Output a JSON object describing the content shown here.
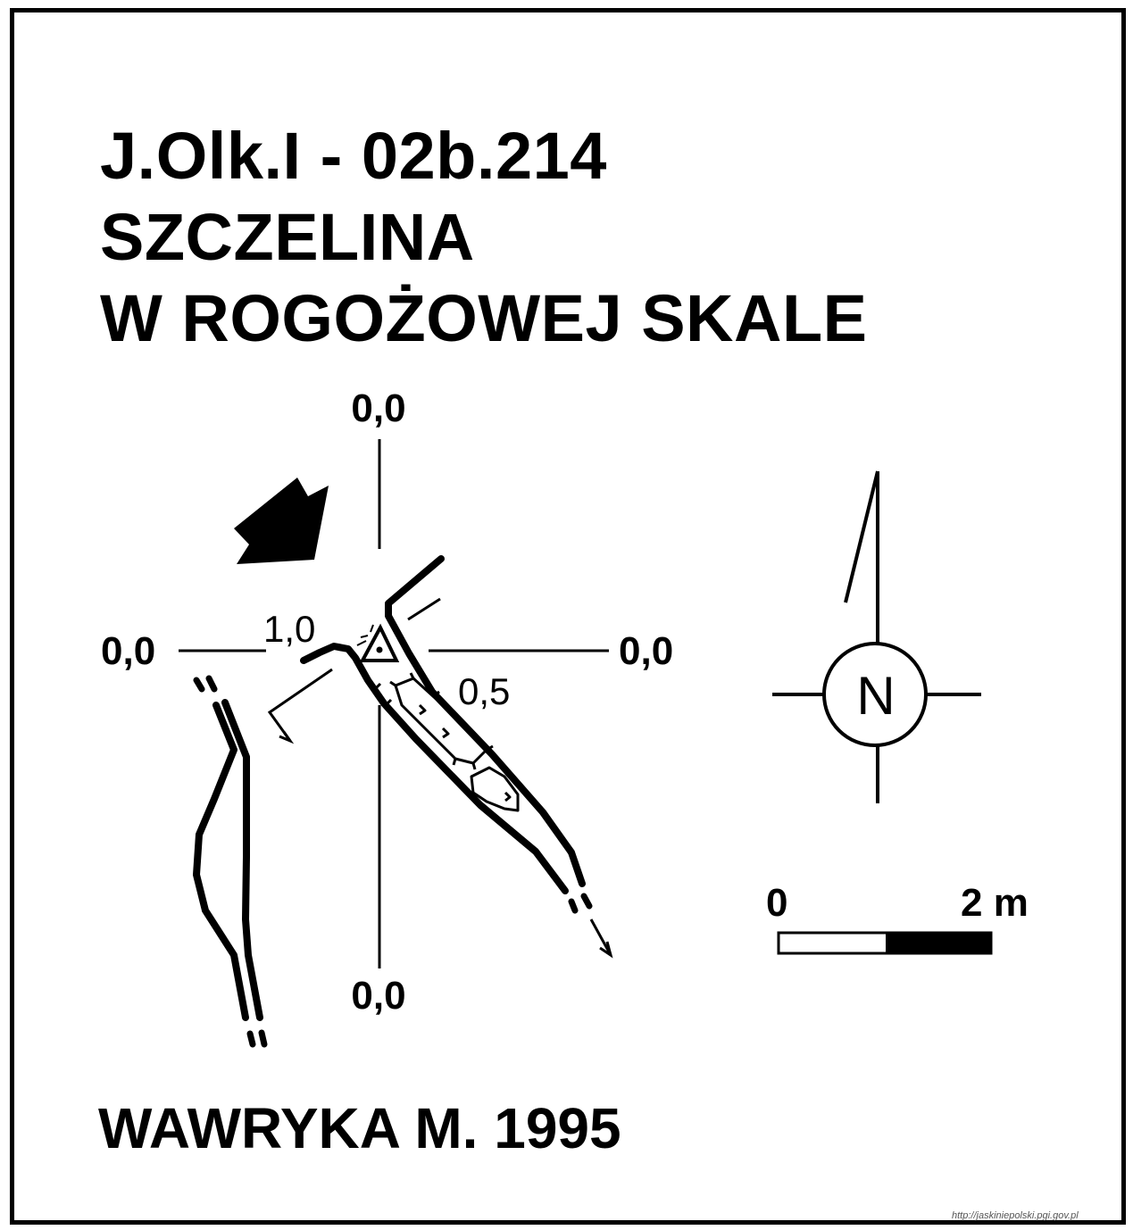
{
  "title": {
    "line1": "J.Olk.I - 02b.214",
    "line2": "SZCZELINA",
    "line3": "W ROGOŻOWEJ SKALE"
  },
  "author": "WAWRYKA M. 1995",
  "source": "http://jaskiniepolski.pgi.gov.pl",
  "plan": {
    "labels": {
      "top": "0,0",
      "bottom": "0,0",
      "left": "0,0",
      "right": "0,0",
      "height_1": "1,0",
      "height_2": "0,5"
    }
  },
  "compass": {
    "letter": "N"
  },
  "scale_bar": {
    "start": "0",
    "end": "2 m"
  },
  "colors": {
    "ink": "#000000",
    "paper": "#ffffff"
  }
}
